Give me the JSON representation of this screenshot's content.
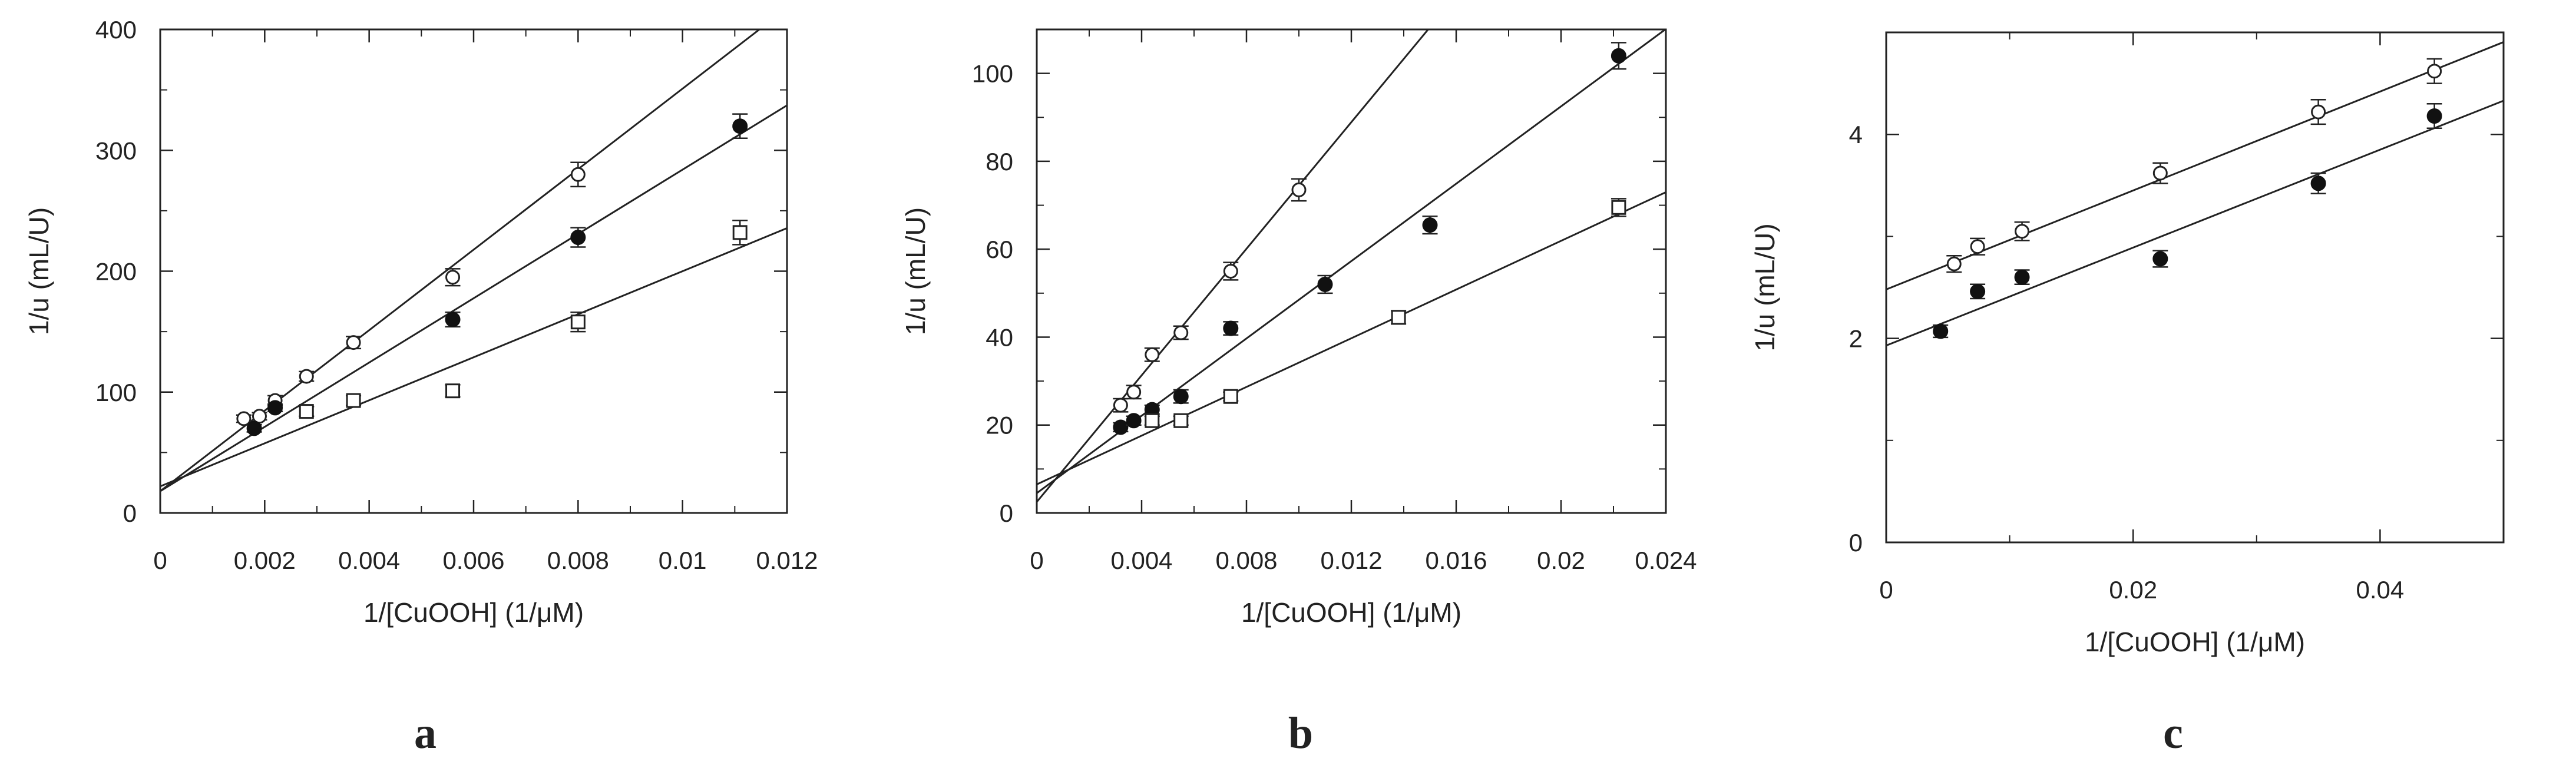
{
  "chart_data": [
    {
      "type": "scatter",
      "panel_label": "a",
      "xlabel": "1/[CuOOH] (1/μM)",
      "ylabel": "1/u (mL/U)",
      "xlim": [
        0,
        0.012
      ],
      "ylim": [
        0,
        400
      ],
      "x_ticks": [
        0,
        0.002,
        0.004,
        0.006,
        0.008,
        0.01,
        0.012
      ],
      "x_tick_labels": [
        "0",
        "0.002",
        "0.004",
        "0.006",
        "0.008",
        "0.01",
        "0.012"
      ],
      "y_ticks": [
        0,
        100,
        200,
        300,
        400
      ],
      "y_tick_labels": [
        "0",
        "100",
        "200",
        "300",
        "400"
      ],
      "grid": false,
      "series": [
        {
          "marker": "open-circle",
          "x": [
            0.0016,
            0.0019,
            0.0022,
            0.0028,
            0.0037,
            0.0056,
            0.008
          ],
          "y": [
            78,
            80,
            93,
            113,
            141,
            195,
            280
          ],
          "err": [
            3,
            3,
            4,
            4,
            5,
            7,
            10
          ],
          "fit": {
            "intercept": 18,
            "slope": 33300
          }
        },
        {
          "marker": "filled-circle",
          "x": [
            0.0018,
            0.0022,
            0.0056,
            0.008,
            0.0111
          ],
          "y": [
            70,
            87,
            160,
            228,
            320
          ],
          "err": [
            3,
            3,
            6,
            8,
            10
          ],
          "fit": {
            "intercept": 18,
            "slope": 26600
          }
        },
        {
          "marker": "open-square",
          "x": [
            0.0028,
            0.0037,
            0.0056,
            0.008,
            0.0111
          ],
          "y": [
            84,
            93,
            101,
            158,
            232
          ],
          "err": [
            4,
            4,
            5,
            8,
            10
          ],
          "fit": {
            "intercept": 22,
            "slope": 17800
          }
        }
      ]
    },
    {
      "type": "scatter",
      "panel_label": "b",
      "xlabel": "1/[CuOOH] (1/μM)",
      "ylabel": "1/u (mL/U)",
      "xlim": [
        0,
        0.024
      ],
      "ylim": [
        0,
        110
      ],
      "x_ticks": [
        0,
        0.004,
        0.008,
        0.012,
        0.016,
        0.02,
        0.024
      ],
      "x_tick_labels": [
        "0",
        "0.004",
        "0.008",
        "0.012",
        "0.016",
        "0.02",
        "0.024"
      ],
      "y_ticks": [
        0,
        20,
        40,
        60,
        80,
        100
      ],
      "y_tick_labels": [
        "0",
        "20",
        "40",
        "60",
        "80",
        "100"
      ],
      "grid": false,
      "series": [
        {
          "marker": "open-circle",
          "x": [
            0.0032,
            0.0037,
            0.0044,
            0.0055,
            0.0074,
            0.01
          ],
          "y": [
            24.5,
            27.5,
            36,
            41,
            55,
            73.5
          ],
          "err": [
            1.5,
            1.5,
            1.5,
            1.5,
            2,
            2.5
          ],
          "fit": {
            "intercept": 2.5,
            "slope": 7200
          }
        },
        {
          "marker": "filled-circle",
          "x": [
            0.0032,
            0.0037,
            0.0044,
            0.0055,
            0.0074,
            0.011,
            0.015,
            0.0222
          ],
          "y": [
            19.5,
            21,
            23.5,
            26.5,
            42,
            52,
            65.5,
            104
          ],
          "err": [
            1,
            1,
            1,
            1.5,
            1.5,
            2,
            2,
            3
          ],
          "fit": {
            "intercept": 4.5,
            "slope": 4400
          }
        },
        {
          "marker": "open-square",
          "x": [
            0.0044,
            0.0055,
            0.0074,
            0.0138,
            0.0222
          ],
          "y": [
            21,
            21,
            26.5,
            44.5,
            69.5
          ],
          "err": [
            1,
            1,
            1,
            1.5,
            2
          ],
          "fit": {
            "intercept": 6.5,
            "slope": 2770
          }
        }
      ]
    },
    {
      "type": "scatter",
      "panel_label": "c",
      "xlabel": "1/[CuOOH] (1/μM)",
      "ylabel": "1/u (mL/U)",
      "xlim": [
        0,
        0.05
      ],
      "ylim": [
        0,
        5
      ],
      "x_ticks": [
        0,
        0.02,
        0.04
      ],
      "x_tick_labels": [
        "0",
        "0.02",
        "0.04"
      ],
      "y_ticks": [
        0,
        2,
        4
      ],
      "y_tick_labels": [
        "0",
        "2",
        "4"
      ],
      "grid": false,
      "series": [
        {
          "marker": "open-circle",
          "x": [
            0.0055,
            0.0074,
            0.011,
            0.0222,
            0.035,
            0.0444
          ],
          "y": [
            2.73,
            2.9,
            3.05,
            3.62,
            4.22,
            4.62
          ],
          "err": [
            0.08,
            0.08,
            0.09,
            0.1,
            0.12,
            0.12
          ],
          "fit": {
            "intercept": 2.48,
            "slope": 48.5
          }
        },
        {
          "marker": "filled-circle",
          "x": [
            0.0044,
            0.0074,
            0.011,
            0.0222,
            0.035,
            0.0444
          ],
          "y": [
            2.07,
            2.46,
            2.6,
            2.78,
            3.52,
            4.18
          ],
          "err": [
            0.06,
            0.07,
            0.07,
            0.08,
            0.1,
            0.12
          ],
          "fit": {
            "intercept": 1.93,
            "slope": 48
          }
        }
      ]
    }
  ]
}
